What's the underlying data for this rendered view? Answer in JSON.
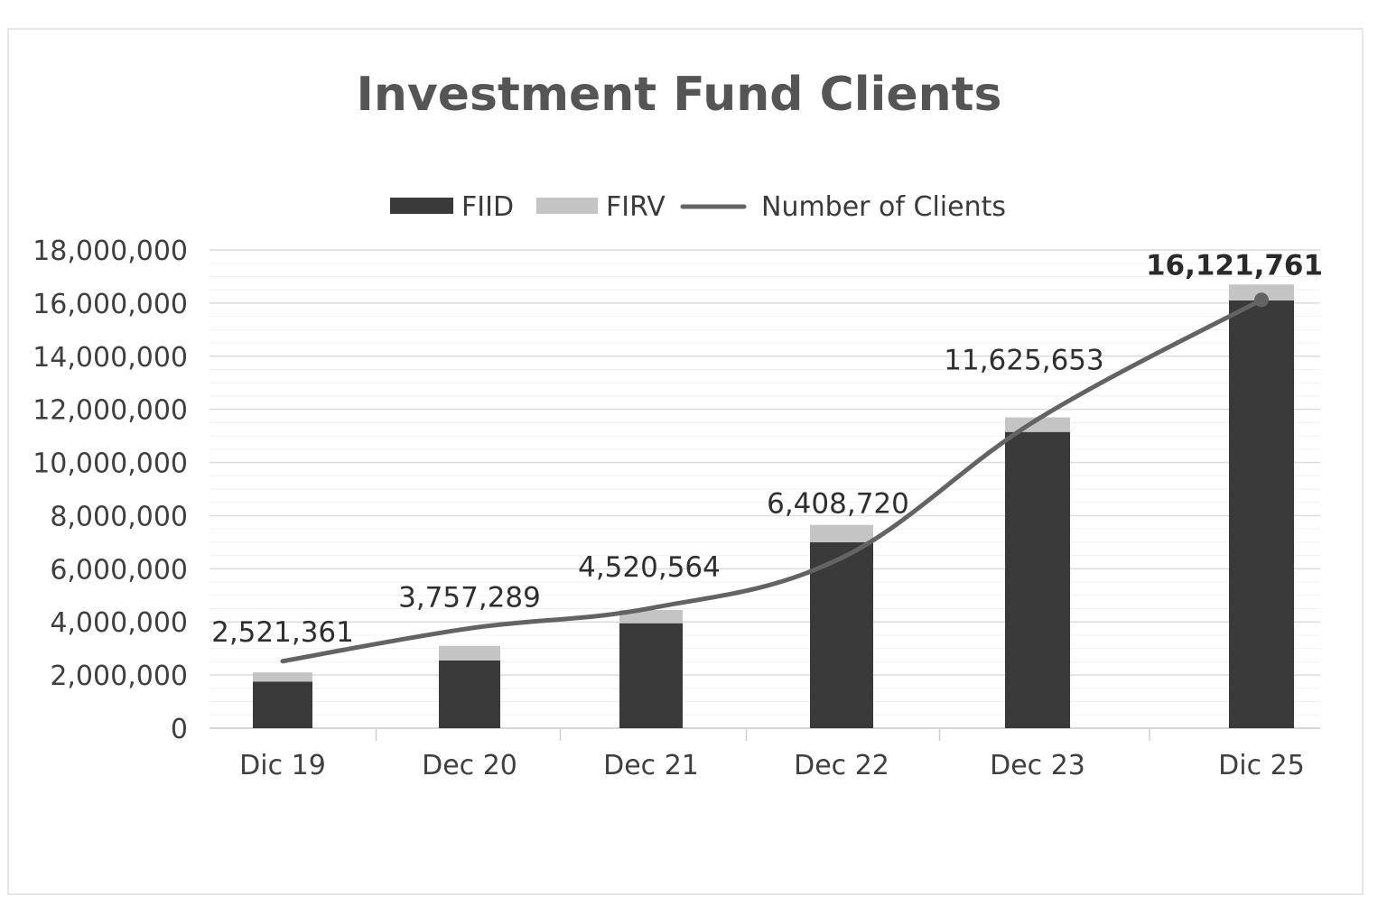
{
  "chart_data": {
    "type": "bar",
    "title": "Investment Fund Clients",
    "categories": [
      "Dic 19",
      "Dec 20",
      "Dec 21",
      "Dec 22",
      "Dec 23",
      "Dic 25"
    ],
    "series": [
      {
        "name": "FIID",
        "kind": "bar-stacked",
        "color": "#3a3a3a",
        "values": [
          1750000,
          2550000,
          3950000,
          7000000,
          11150000,
          16100000
        ]
      },
      {
        "name": "FIRV",
        "kind": "bar-stacked",
        "color": "#c4c4c4",
        "values": [
          350000,
          550000,
          500000,
          650000,
          550000,
          600000
        ]
      },
      {
        "name": "Number of Clients",
        "kind": "line",
        "color": "#636363",
        "values": [
          2521361,
          3757289,
          4520564,
          6408720,
          11625653,
          16121761
        ]
      }
    ],
    "data_labels": [
      "2,521,361",
      "3,757,289",
      "4,520,564",
      "6,408,720",
      "11,625,653",
      "16,121,761"
    ],
    "ylim": [
      0,
      18000000
    ],
    "yticks": [
      0,
      2000000,
      4000000,
      6000000,
      8000000,
      10000000,
      12000000,
      14000000,
      16000000,
      18000000
    ],
    "ytick_labels": [
      "0",
      "2,000,000",
      "4,000,000",
      "6,000,000",
      "8,000,000",
      "10,000,000",
      "12,000,000",
      "14,000,000",
      "16,000,000",
      "18,000,000"
    ],
    "xlabel": "",
    "ylabel": "",
    "legend": {
      "position": "top",
      "entries": [
        "FIID",
        "FIRV",
        "Number of Clients"
      ]
    },
    "grid": true
  }
}
